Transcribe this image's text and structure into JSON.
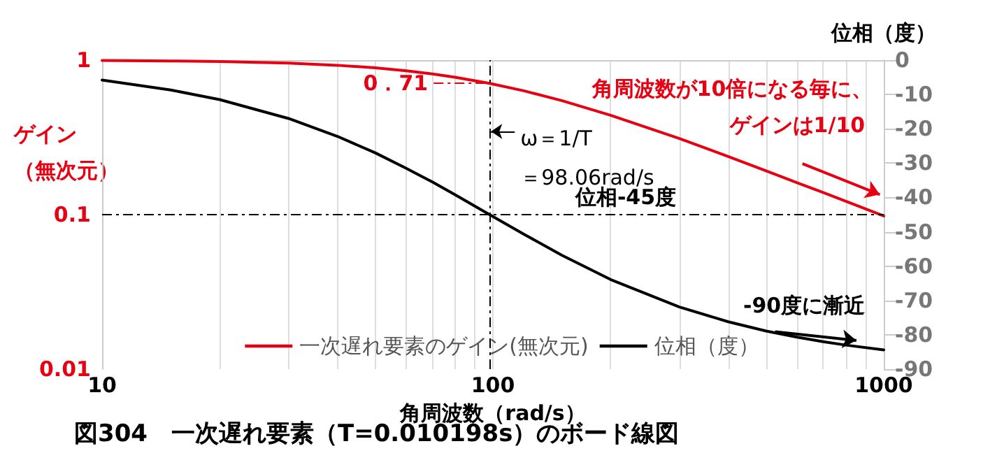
{
  "chart_data": {
    "type": "line",
    "title": "図304　一次遅れ要素（T=0.010198s）のボード線図",
    "xlabel": "角周波数（rad/s）",
    "ylabel": "ゲイン（無次元）",
    "y2label": "位相（度）",
    "x": [
      10,
      15,
      20,
      30,
      40,
      50,
      60,
      70,
      80,
      98.06,
      120,
      150,
      200,
      300,
      400,
      500,
      600,
      700,
      800,
      1000
    ],
    "series": [
      {
        "name": "一次遅れ要素のゲイン(無次元)",
        "color": "#e60012",
        "values": [
          0.995,
          0.988,
          0.98,
          0.956,
          0.926,
          0.891,
          0.853,
          0.814,
          0.775,
          0.707,
          0.633,
          0.547,
          0.44,
          0.311,
          0.238,
          0.192,
          0.161,
          0.139,
          0.122,
          0.098
        ]
      },
      {
        "name": "位相（度）",
        "color": "#000000",
        "axis": "y2",
        "values": [
          -5.8,
          -8.7,
          -11.5,
          -17,
          -22.2,
          -27,
          -31.5,
          -35.5,
          -39.2,
          -45,
          -50.7,
          -56.8,
          -63.9,
          -71.9,
          -76.2,
          -78.9,
          -80.7,
          -82,
          -83,
          -84.4
        ]
      }
    ],
    "log": "xy",
    "xlim": [
      10,
      1000
    ],
    "xticks": [
      10,
      {
        "value": 20,
        "label": null
      },
      {
        "value": 30,
        "label": null
      },
      {
        "value": 40,
        "label": null
      },
      {
        "value": 50,
        "label": null
      },
      {
        "value": 60,
        "label": null
      },
      {
        "value": 70,
        "label": null
      },
      {
        "value": 80,
        "label": null
      },
      {
        "value": 90,
        "label": null
      },
      100,
      {
        "value": 200,
        "label": null
      },
      {
        "value": 300,
        "label": null
      },
      {
        "value": 400,
        "label": null
      },
      {
        "value": 500,
        "label": null
      },
      {
        "value": 600,
        "label": null
      },
      {
        "value": 700,
        "label": null
      },
      {
        "value": 800,
        "label": null
      },
      {
        "value": 900,
        "label": null
      },
      1000
    ],
    "ylim": [
      0.01,
      1
    ],
    "yticks": [
      0.01,
      0.1,
      1
    ],
    "y2lim": [
      -90,
      0
    ],
    "y2ticks": [
      -90,
      -80,
      -70,
      -60,
      -50,
      -40,
      -30,
      -20,
      -10,
      0
    ],
    "grid": "x",
    "legend": "bottom",
    "marker": "none",
    "line_style": "solid",
    "ref_lines": [
      {
        "axis": "y2",
        "value": -45,
        "label": "位相-45度",
        "color": "#000000",
        "line_style": "dashed"
      },
      {
        "axis": "x",
        "value": 98.06,
        "label": "ω＝1/T\n＝98.06rad/s",
        "color": "#000000",
        "line_style": "dashed"
      }
    ],
    "annotations": [
      {
        "text": "0．71",
        "x": 98.06,
        "y": 0.71
      },
      "角周波数が10倍になる毎に、",
      "ゲインは1/10",
      "-90度に漸近"
    ]
  }
}
